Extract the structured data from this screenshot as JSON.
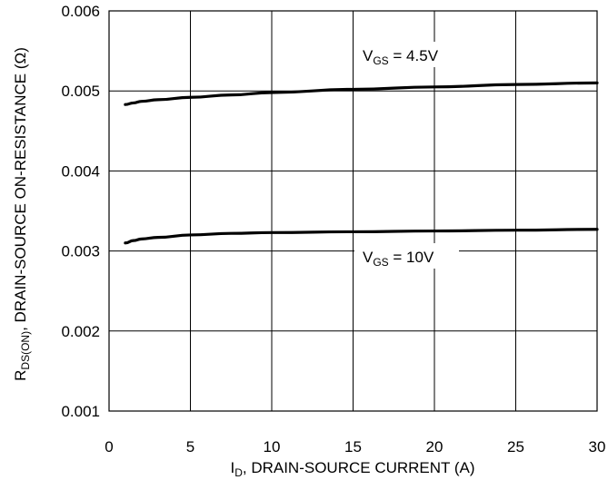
{
  "chart_data": {
    "type": "line",
    "xlabel": {
      "main": "I",
      "sub": "D",
      "rest": ", DRAIN-SOURCE CURRENT   (A)"
    },
    "ylabel": {
      "main": "R",
      "sub": "DS(ON)",
      "rest": ", DRAIN-SOURCE ON-RESISTANCE (Ω)"
    },
    "xlim": [
      0,
      30
    ],
    "ylim": [
      0.001,
      0.006
    ],
    "xticks": [
      0,
      5,
      10,
      15,
      20,
      25,
      30
    ],
    "yticks": [
      0.001,
      0.002,
      0.003,
      0.004,
      0.005,
      0.006
    ],
    "xtick_labels": [
      "0",
      "5",
      "10",
      "15",
      "20",
      "25",
      "30"
    ],
    "ytick_labels": [
      "0.001",
      "0.002",
      "0.003",
      "0.004",
      "0.005",
      "0.006"
    ],
    "grid": true,
    "series": [
      {
        "label_main": "V",
        "label_sub": "GS",
        "label_rest": " = 4.5V",
        "x": [
          1,
          1.5,
          2,
          3,
          5,
          7.5,
          10,
          15,
          20,
          25,
          30
        ],
        "values": [
          0.00483,
          0.00485,
          0.00487,
          0.00489,
          0.00492,
          0.00495,
          0.00498,
          0.00502,
          0.00505,
          0.00508,
          0.0051
        ]
      },
      {
        "label_main": "V",
        "label_sub": "GS",
        "label_rest": " = 10V",
        "x": [
          1,
          1.5,
          2,
          3,
          5,
          7.5,
          10,
          15,
          20,
          25,
          30
        ],
        "values": [
          0.0031,
          0.00313,
          0.00315,
          0.00317,
          0.0032,
          0.00322,
          0.00323,
          0.00324,
          0.00325,
          0.00326,
          0.00327
        ]
      }
    ]
  }
}
